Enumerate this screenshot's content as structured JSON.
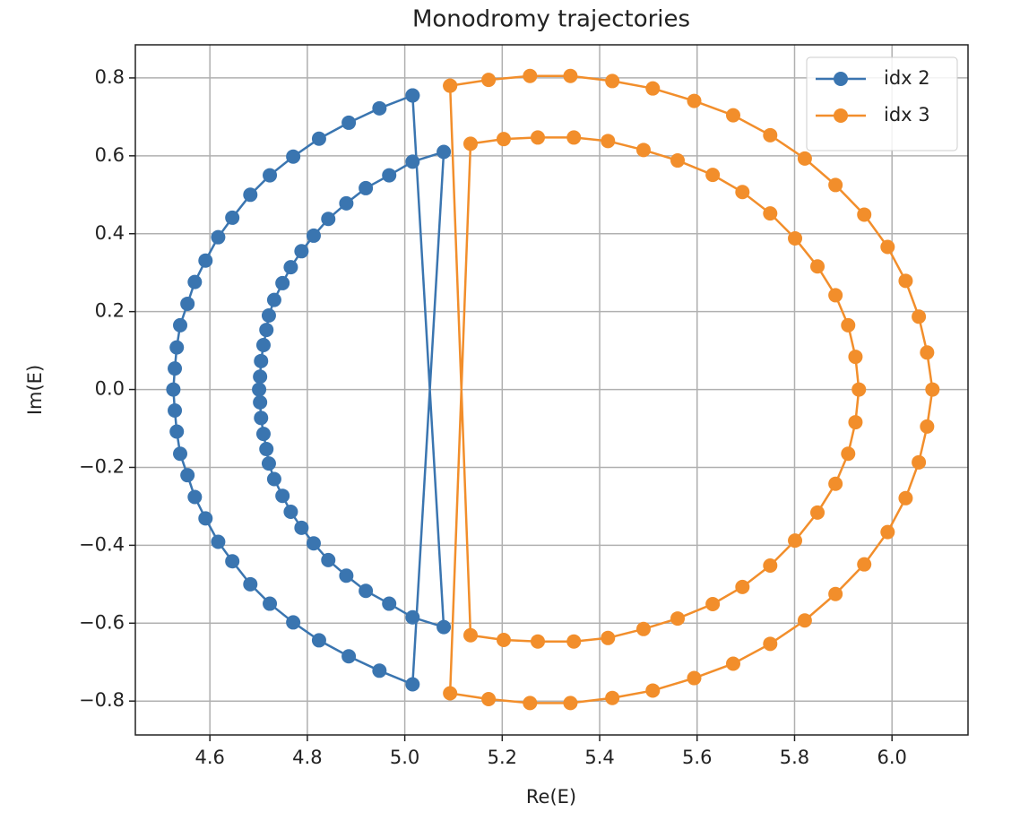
{
  "chart_data": {
    "type": "scatter",
    "title": "Monodromy trajectories",
    "x_label": "Re(E)",
    "y_label": "Im(E)",
    "xlim": [
      4.447,
      6.156
    ],
    "ylim": [
      -0.887,
      0.885
    ],
    "xticks": [
      4.6,
      4.8,
      {
        "value": 5.0,
        "label": "5.0"
      },
      5.2,
      5.4,
      5.6,
      5.8,
      {
        "value": 6.0,
        "label": "6.0"
      }
    ],
    "yticks": [
      {
        "value": -0.8,
        "label": "−0.8"
      },
      {
        "value": -0.6,
        "label": "−0.6"
      },
      {
        "value": -0.4,
        "label": "−0.4"
      },
      {
        "value": -0.2,
        "label": "−0.2"
      },
      {
        "value": 0,
        "label": "0.0"
      },
      0.2,
      0.4,
      0.6,
      0.8
    ],
    "grid": true,
    "legend": "upper right",
    "series": [
      {
        "name": "idx 2",
        "color": "#3a75b0",
        "x": [
          5.016,
          4.948,
          4.885,
          4.824,
          4.771,
          4.723,
          4.683,
          4.646,
          4.617,
          4.591,
          4.569,
          4.554,
          4.539,
          4.532,
          4.528,
          4.525,
          4.528,
          4.532,
          4.539,
          4.554,
          4.569,
          4.591,
          4.617,
          4.646,
          4.683,
          4.723,
          4.771,
          4.824,
          4.885,
          4.948,
          5.016,
          5.08,
          5.016,
          4.968,
          4.92,
          4.88,
          4.843,
          4.813,
          4.788,
          4.766,
          4.749,
          4.732,
          4.721,
          4.716,
          4.71,
          4.705,
          4.703,
          4.701,
          4.703,
          4.705,
          4.71,
          4.716,
          4.721,
          4.732,
          4.749,
          4.766,
          4.788,
          4.813,
          4.843,
          4.88,
          4.92,
          4.968,
          5.016,
          5.08,
          5.016
        ],
        "values": [
          0.755,
          0.722,
          0.685,
          0.644,
          0.598,
          0.55,
          0.5,
          0.441,
          0.391,
          0.331,
          0.276,
          0.22,
          0.165,
          0.108,
          0.054,
          0,
          -0.054,
          -0.108,
          -0.165,
          -0.22,
          -0.276,
          -0.331,
          -0.391,
          -0.441,
          -0.5,
          -0.55,
          -0.598,
          -0.644,
          -0.685,
          -0.722,
          -0.757,
          0.61,
          0.585,
          0.55,
          0.517,
          0.478,
          0.438,
          0.395,
          0.355,
          0.314,
          0.273,
          0.23,
          0.19,
          0.153,
          0.114,
          0.073,
          0.033,
          0,
          -0.033,
          -0.073,
          -0.114,
          -0.153,
          -0.19,
          -0.23,
          -0.273,
          -0.314,
          -0.355,
          -0.395,
          -0.438,
          -0.478,
          -0.517,
          -0.55,
          -0.585,
          -0.61,
          0.755
        ]
      },
      {
        "name": "idx 3",
        "color": "#f28e2b",
        "x": [
          5.093,
          5.172,
          5.257,
          5.34,
          5.426,
          5.509,
          5.594,
          5.674,
          5.75,
          5.821,
          5.884,
          5.943,
          5.991,
          6.028,
          6.055,
          6.072,
          6.083,
          6.072,
          6.055,
          6.028,
          5.991,
          5.943,
          5.884,
          5.821,
          5.75,
          5.674,
          5.594,
          5.509,
          5.426,
          5.34,
          5.257,
          5.172,
          5.093,
          5.135,
          5.203,
          5.273,
          5.347,
          5.417,
          5.49,
          5.56,
          5.632,
          5.693,
          5.75,
          5.801,
          5.847,
          5.884,
          5.91,
          5.925,
          5.932,
          5.925,
          5.91,
          5.884,
          5.847,
          5.801,
          5.75,
          5.693,
          5.632,
          5.56,
          5.49,
          5.417,
          5.347,
          5.273,
          5.203,
          5.135,
          5.093
        ],
        "values": [
          0.78,
          0.795,
          0.805,
          0.805,
          0.792,
          0.773,
          0.741,
          0.704,
          0.653,
          0.593,
          0.525,
          0.449,
          0.366,
          0.279,
          0.187,
          0.095,
          0,
          -0.095,
          -0.187,
          -0.279,
          -0.366,
          -0.449,
          -0.525,
          -0.593,
          -0.653,
          -0.704,
          -0.741,
          -0.773,
          -0.792,
          -0.805,
          -0.805,
          -0.795,
          -0.78,
          0.631,
          0.643,
          0.647,
          0.647,
          0.638,
          0.615,
          0.588,
          0.551,
          0.507,
          0.452,
          0.388,
          0.316,
          0.242,
          0.165,
          0.084,
          0,
          -0.084,
          -0.165,
          -0.242,
          -0.316,
          -0.388,
          -0.452,
          -0.507,
          -0.551,
          -0.588,
          -0.615,
          -0.638,
          -0.647,
          -0.647,
          -0.643,
          -0.631,
          0.78
        ]
      }
    ]
  }
}
